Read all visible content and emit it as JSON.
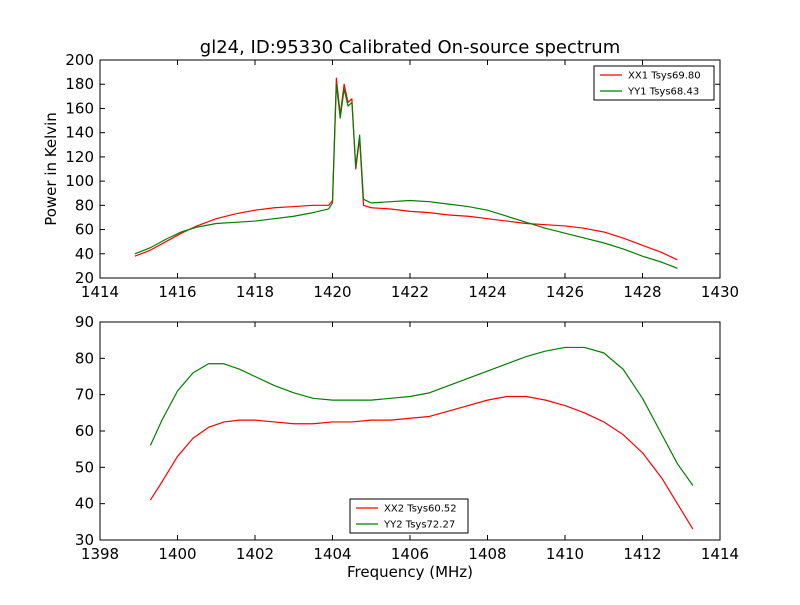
{
  "title": "gl24, ID:95330 Calibrated On-source spectrum",
  "ylabel": "Power in Kelvin",
  "xlabel": "Frequency (MHz)",
  "colors": {
    "xx": "#ff0000",
    "yy": "#007f00"
  },
  "chart_data": [
    {
      "type": "line",
      "xlim": [
        1414,
        1430
      ],
      "ylim": [
        20,
        200
      ],
      "xticks": [
        1414,
        1416,
        1418,
        1420,
        1422,
        1424,
        1426,
        1428,
        1430
      ],
      "yticks": [
        20,
        40,
        60,
        80,
        100,
        120,
        140,
        160,
        180,
        200
      ],
      "legend_position": "top-right",
      "series": [
        {
          "name": "XX1 Tsys69.80",
          "color": "#ff0000",
          "points": [
            [
              1414.9,
              38
            ],
            [
              1415.3,
              43
            ],
            [
              1415.7,
              50
            ],
            [
              1416.1,
              57
            ],
            [
              1416.5,
              63
            ],
            [
              1417.0,
              69
            ],
            [
              1417.5,
              73
            ],
            [
              1418.0,
              76
            ],
            [
              1418.5,
              78
            ],
            [
              1419.0,
              79
            ],
            [
              1419.5,
              80
            ],
            [
              1419.9,
              80
            ],
            [
              1420.0,
              84
            ],
            [
              1420.1,
              185
            ],
            [
              1420.2,
              155
            ],
            [
              1420.3,
              180
            ],
            [
              1420.4,
              165
            ],
            [
              1420.5,
              168
            ],
            [
              1420.6,
              110
            ],
            [
              1420.7,
              135
            ],
            [
              1420.8,
              80
            ],
            [
              1421.0,
              78
            ],
            [
              1421.5,
              77
            ],
            [
              1422.0,
              75
            ],
            [
              1422.5,
              74
            ],
            [
              1423.0,
              72
            ],
            [
              1423.5,
              71
            ],
            [
              1424.0,
              69
            ],
            [
              1424.5,
              67
            ],
            [
              1425.0,
              65
            ],
            [
              1425.5,
              64
            ],
            [
              1426.0,
              63
            ],
            [
              1426.5,
              61
            ],
            [
              1427.0,
              58
            ],
            [
              1427.5,
              53
            ],
            [
              1428.0,
              47
            ],
            [
              1428.5,
              41
            ],
            [
              1428.9,
              35
            ]
          ]
        },
        {
          "name": "YY1 Tsys68.43",
          "color": "#007f00",
          "points": [
            [
              1414.9,
              40
            ],
            [
              1415.3,
              45
            ],
            [
              1415.7,
              52
            ],
            [
              1416.1,
              58
            ],
            [
              1416.5,
              62
            ],
            [
              1417.0,
              65
            ],
            [
              1417.5,
              66
            ],
            [
              1418.0,
              67
            ],
            [
              1418.5,
              69
            ],
            [
              1419.0,
              71
            ],
            [
              1419.5,
              74
            ],
            [
              1419.9,
              77
            ],
            [
              1420.0,
              82
            ],
            [
              1420.1,
              180
            ],
            [
              1420.2,
              152
            ],
            [
              1420.3,
              176
            ],
            [
              1420.4,
              162
            ],
            [
              1420.5,
              165
            ],
            [
              1420.6,
              112
            ],
            [
              1420.7,
              138
            ],
            [
              1420.8,
              85
            ],
            [
              1421.0,
              82
            ],
            [
              1421.5,
              83
            ],
            [
              1422.0,
              84
            ],
            [
              1422.5,
              83
            ],
            [
              1423.0,
              81
            ],
            [
              1423.5,
              79
            ],
            [
              1424.0,
              76
            ],
            [
              1424.5,
              71
            ],
            [
              1425.0,
              66
            ],
            [
              1425.5,
              61
            ],
            [
              1426.0,
              57
            ],
            [
              1426.5,
              53
            ],
            [
              1427.0,
              49
            ],
            [
              1427.5,
              44
            ],
            [
              1428.0,
              38
            ],
            [
              1428.5,
              33
            ],
            [
              1428.9,
              28
            ]
          ]
        }
      ]
    },
    {
      "type": "line",
      "xlim": [
        1398,
        1414
      ],
      "ylim": [
        30,
        90
      ],
      "xticks": [
        1398,
        1400,
        1402,
        1404,
        1406,
        1408,
        1410,
        1412,
        1414
      ],
      "yticks": [
        30,
        40,
        50,
        60,
        70,
        80,
        90
      ],
      "legend_position": "bottom-center",
      "series": [
        {
          "name": "XX2 Tsys60.52",
          "color": "#ff0000",
          "points": [
            [
              1399.3,
              41
            ],
            [
              1399.6,
              46
            ],
            [
              1400.0,
              53
            ],
            [
              1400.4,
              58
            ],
            [
              1400.8,
              61
            ],
            [
              1401.2,
              62.5
            ],
            [
              1401.6,
              63
            ],
            [
              1402.0,
              63
            ],
            [
              1402.5,
              62.5
            ],
            [
              1403.0,
              62
            ],
            [
              1403.5,
              62
            ],
            [
              1404.0,
              62.5
            ],
            [
              1404.5,
              62.5
            ],
            [
              1405.0,
              63
            ],
            [
              1405.5,
              63
            ],
            [
              1406.0,
              63.5
            ],
            [
              1406.5,
              64
            ],
            [
              1407.0,
              65.5
            ],
            [
              1407.5,
              67
            ],
            [
              1408.0,
              68.5
            ],
            [
              1408.5,
              69.5
            ],
            [
              1409.0,
              69.5
            ],
            [
              1409.5,
              68.5
            ],
            [
              1410.0,
              67
            ],
            [
              1410.5,
              65
            ],
            [
              1411.0,
              62.5
            ],
            [
              1411.5,
              59
            ],
            [
              1412.0,
              54
            ],
            [
              1412.5,
              47
            ],
            [
              1412.9,
              40
            ],
            [
              1413.3,
              33
            ]
          ]
        },
        {
          "name": "YY2 Tsys72.27",
          "color": "#007f00",
          "points": [
            [
              1399.3,
              56
            ],
            [
              1399.6,
              63
            ],
            [
              1400.0,
              71
            ],
            [
              1400.4,
              76
            ],
            [
              1400.8,
              78.5
            ],
            [
              1401.2,
              78.5
            ],
            [
              1401.6,
              77
            ],
            [
              1402.0,
              75
            ],
            [
              1402.5,
              72.5
            ],
            [
              1403.0,
              70.5
            ],
            [
              1403.5,
              69
            ],
            [
              1404.0,
              68.5
            ],
            [
              1404.5,
              68.5
            ],
            [
              1405.0,
              68.5
            ],
            [
              1405.5,
              69
            ],
            [
              1406.0,
              69.5
            ],
            [
              1406.5,
              70.5
            ],
            [
              1407.0,
              72.5
            ],
            [
              1407.5,
              74.5
            ],
            [
              1408.0,
              76.5
            ],
            [
              1408.5,
              78.5
            ],
            [
              1409.0,
              80.5
            ],
            [
              1409.5,
              82
            ],
            [
              1410.0,
              83
            ],
            [
              1410.5,
              83
            ],
            [
              1411.0,
              81.5
            ],
            [
              1411.5,
              77
            ],
            [
              1412.0,
              69
            ],
            [
              1412.5,
              59
            ],
            [
              1412.9,
              51
            ],
            [
              1413.3,
              45
            ]
          ]
        }
      ]
    }
  ]
}
